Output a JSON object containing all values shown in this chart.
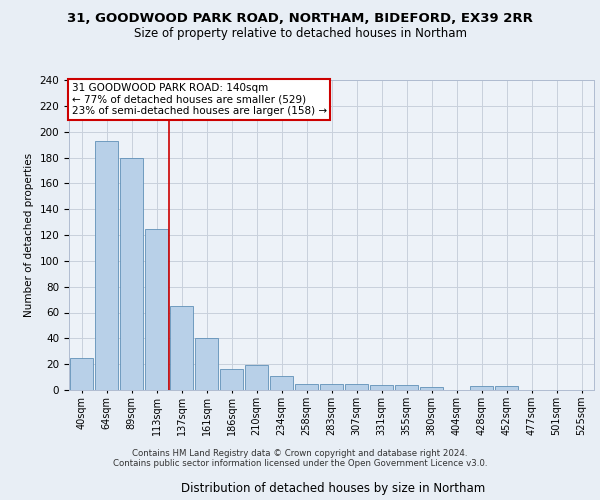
{
  "title1": "31, GOODWOOD PARK ROAD, NORTHAM, BIDEFORD, EX39 2RR",
  "title2": "Size of property relative to detached houses in Northam",
  "xlabel": "Distribution of detached houses by size in Northam",
  "ylabel": "Number of detached properties",
  "categories": [
    "40sqm",
    "64sqm",
    "89sqm",
    "113sqm",
    "137sqm",
    "161sqm",
    "186sqm",
    "210sqm",
    "234sqm",
    "258sqm",
    "283sqm",
    "307sqm",
    "331sqm",
    "355sqm",
    "380sqm",
    "404sqm",
    "428sqm",
    "452sqm",
    "477sqm",
    "501sqm",
    "525sqm"
  ],
  "values": [
    25,
    193,
    180,
    125,
    65,
    40,
    16,
    19,
    11,
    5,
    5,
    5,
    4,
    4,
    2,
    0,
    3,
    3,
    0,
    0,
    0
  ],
  "bar_color": "#b8d0e8",
  "bar_edge_color": "#6090b8",
  "vline_index": 3.5,
  "vline_color": "#cc0000",
  "annotation_text": "31 GOODWOOD PARK ROAD: 140sqm\n← 77% of detached houses are smaller (529)\n23% of semi-detached houses are larger (158) →",
  "annotation_box_color": "#ffffff",
  "annotation_box_edge": "#cc0000",
  "ylim": [
    0,
    240
  ],
  "yticks": [
    0,
    20,
    40,
    60,
    80,
    100,
    120,
    140,
    160,
    180,
    200,
    220,
    240
  ],
  "footer_line1": "Contains HM Land Registry data © Crown copyright and database right 2024.",
  "footer_line2": "Contains public sector information licensed under the Open Government Licence v3.0.",
  "bg_color": "#e8eef5",
  "plot_bg_color": "#edf2f8",
  "grid_color": "#c8d0dc"
}
